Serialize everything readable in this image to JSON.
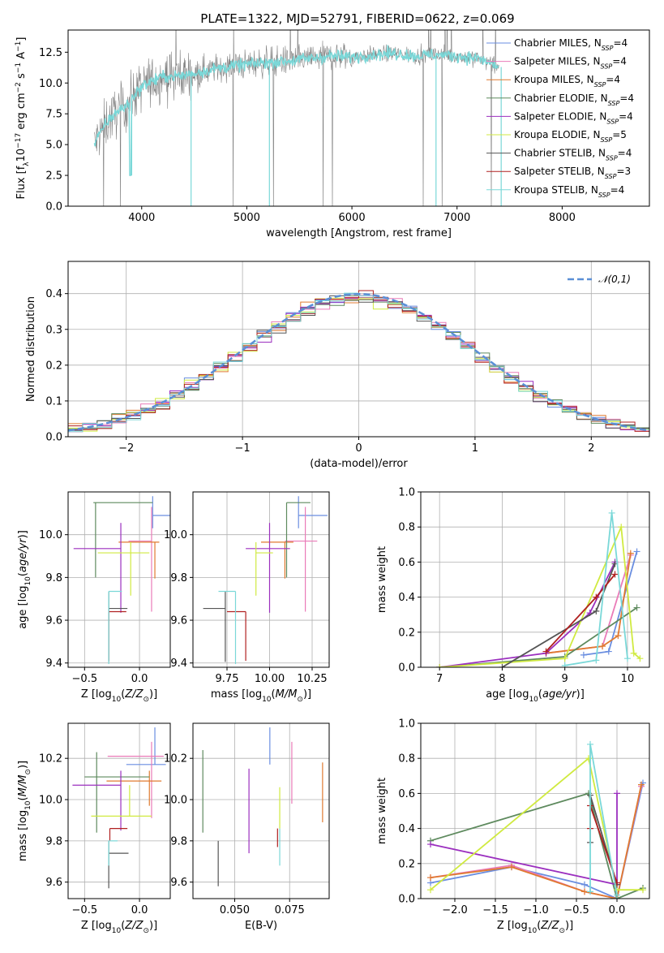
{
  "figure_title": "PLATE=1322, MJD=52791, FIBERID=0622, z=0.069",
  "colors": {
    "Chabrier MILES": "#6a8ee0",
    "Salpeter MILES": "#ea7bb8",
    "Kroupa MILES": "#e07a30",
    "Chabrier ELODIE": "#5e8a5e",
    "Salpeter ELODIE": "#9b2fbf",
    "Kroupa ELODIE": "#d0ea40",
    "Chabrier STELIB": "#555555",
    "Salpeter STELIB": "#b02020",
    "Kroupa STELIB": "#7ad8d8",
    "data": "#808080",
    "normal": "#5b8fd6"
  },
  "chart_data": [
    {
      "id": "spectrum",
      "type": "line",
      "title": "PLATE=1322, MJD=52791, FIBERID=0622, z=0.069",
      "xlabel": "wavelength [Angstrom, rest frame]",
      "ylabel": "Flux [f_λ 10^-17 erg cm^-2 s^-1 A^-1]",
      "xlim": [
        3300,
        8830
      ],
      "ylim": [
        0,
        14.3
      ],
      "xticks": [
        4000,
        5000,
        6000,
        7000,
        8000
      ],
      "yticks": [
        0.0,
        2.5,
        5.0,
        7.5,
        10.0,
        12.5
      ],
      "continuum_x": [
        3550,
        3650,
        3750,
        3850,
        3950,
        4050,
        4200,
        4400,
        4600,
        4800,
        5000,
        5200,
        5400,
        5600,
        5800,
        6000,
        6200,
        6400,
        6600,
        6800,
        7000,
        7200,
        7400
      ],
      "continuum_y": [
        5.0,
        6.6,
        7.6,
        8.1,
        9.3,
        10.0,
        10.5,
        10.6,
        11.0,
        11.3,
        11.5,
        11.7,
        11.8,
        12.0,
        12.2,
        12.1,
        12.3,
        12.4,
        12.2,
        12.3,
        12.2,
        12.0,
        11.3
      ],
      "legend": [
        {
          "label": "Chabrier MILES, N_SSP=4"
        },
        {
          "label": "Salpeter MILES, N_SSP=4"
        },
        {
          "label": "Kroupa MILES, N_SSP=4"
        },
        {
          "label": "Chabrier ELODIE, N_SSP=4"
        },
        {
          "label": "Salpeter ELODIE, N_SSP=4"
        },
        {
          "label": "Kroupa ELODIE, N_SSP=5"
        },
        {
          "label": "Chabrier STELIB, N_SSP=4"
        },
        {
          "label": "Salpeter STELIB, N_SSP=3"
        },
        {
          "label": "Kroupa STELIB, N_SSP=4"
        }
      ]
    },
    {
      "id": "residual_hist",
      "type": "bar",
      "xlabel": "(data-model)/error",
      "ylabel": "Normed distribution",
      "xlim": [
        -2.5,
        2.5
      ],
      "ylim": [
        0,
        0.49
      ],
      "xticks": [
        -2,
        -1,
        0,
        1,
        2
      ],
      "yticks": [
        0.0,
        0.1,
        0.2,
        0.3,
        0.4
      ],
      "normal_label": "𝒩(0,1)"
    },
    {
      "id": "age_vs_Z",
      "type": "scatter",
      "xlabel": "Z [log10(Z/Z⊙)]",
      "ylabel": "age [log10(age/yr)]",
      "xlim": [
        -0.65,
        0.28
      ],
      "ylim": [
        9.38,
        10.2
      ],
      "xticks": [
        -0.5,
        0.0
      ],
      "yticks": [
        9.4,
        9.6,
        9.8,
        10.0
      ],
      "points": [
        {
          "model": "Chabrier MILES",
          "x": 0.12,
          "xerr": [
            0.0,
            0.22
          ],
          "y": 10.09,
          "yerr": [
            0.06,
            0.09
          ]
        },
        {
          "model": "Salpeter MILES",
          "x": 0.11,
          "xerr": [
            0.21,
            0.0
          ],
          "y": 9.97,
          "yerr": [
            0.33,
            0.16
          ]
        },
        {
          "model": "Kroupa MILES",
          "x": 0.14,
          "xerr": [
            0.33,
            0.04
          ],
          "y": 9.965,
          "yerr": [
            0.17,
            0.0
          ]
        },
        {
          "model": "Chabrier ELODIE",
          "x": -0.4,
          "xerr": [
            0.02,
            0.52
          ],
          "y": 10.15,
          "yerr": [
            0.35,
            0.0
          ]
        },
        {
          "model": "Salpeter ELODIE",
          "x": -0.17,
          "xerr": [
            0.43,
            0.0
          ],
          "y": 9.935,
          "yerr": [
            0.3,
            0.12
          ]
        },
        {
          "model": "Kroupa ELODIE",
          "x": -0.08,
          "xerr": [
            0.3,
            0.17
          ],
          "y": 9.915,
          "yerr": [
            0.2,
            0.05
          ]
        },
        {
          "model": "Chabrier STELIB",
          "x": -0.28,
          "xerr": [
            0.0,
            0.17
          ],
          "y": 9.655,
          "yerr": [
            0.25,
            0.08
          ]
        },
        {
          "model": "Salpeter STELIB",
          "x": -0.28,
          "xerr": [
            0.0,
            0.16
          ],
          "y": 9.64,
          "yerr": [
            0.23,
            0.0
          ]
        },
        {
          "model": "Kroupa STELIB",
          "x": -0.28,
          "xerr": [
            0.0,
            0.12
          ],
          "y": 9.735,
          "yerr": [
            0.34,
            0.0
          ]
        }
      ]
    },
    {
      "id": "age_vs_mass",
      "type": "scatter",
      "xlabel": "mass [log10(M/M⊙)]",
      "ylabel": "",
      "xlim": [
        9.55,
        10.35
      ],
      "ylim": [
        9.38,
        10.2
      ],
      "xticks": [
        9.75,
        10.0,
        10.25
      ],
      "xtick_labels": [
        "9.75",
        "10.00",
        "10.25"
      ],
      "yticks": [
        9.4,
        9.6,
        9.8,
        10.0
      ],
      "points": [
        {
          "model": "Chabrier MILES",
          "x": 10.17,
          "xerr": [
            0.0,
            0.17
          ],
          "y": 10.09,
          "yerr": [
            0.06,
            0.09
          ]
        },
        {
          "model": "Salpeter MILES",
          "x": 10.21,
          "xerr": [
            0.12,
            0.07
          ],
          "y": 9.97,
          "yerr": [
            0.33,
            0.16
          ]
        },
        {
          "model": "Kroupa MILES",
          "x": 10.09,
          "xerr": [
            0.14,
            0.05
          ],
          "y": 9.965,
          "yerr": [
            0.17,
            0.0
          ]
        },
        {
          "model": "Chabrier ELODIE",
          "x": 10.1,
          "xerr": [
            0.0,
            0.14
          ],
          "y": 10.15,
          "yerr": [
            0.35,
            0.0
          ]
        },
        {
          "model": "Salpeter ELODIE",
          "x": 10.0,
          "xerr": [
            0.14,
            0.12
          ],
          "y": 9.935,
          "yerr": [
            0.3,
            0.12
          ]
        },
        {
          "model": "Kroupa ELODIE",
          "x": 9.92,
          "xerr": [
            0.0,
            0.1
          ],
          "y": 9.915,
          "yerr": [
            0.2,
            0.05
          ]
        },
        {
          "model": "Chabrier STELIB",
          "x": 9.74,
          "xerr": [
            0.13,
            0.0
          ],
          "y": 9.655,
          "yerr": [
            0.25,
            0.08
          ]
        },
        {
          "model": "Salpeter STELIB",
          "x": 9.86,
          "xerr": [
            0.11,
            0.0
          ],
          "y": 9.64,
          "yerr": [
            0.23,
            0.0
          ]
        },
        {
          "model": "Kroupa STELIB",
          "x": 9.8,
          "xerr": [
            0.1,
            0.0
          ],
          "y": 9.735,
          "yerr": [
            0.34,
            0.0
          ]
        }
      ]
    },
    {
      "id": "weight_vs_age",
      "type": "line",
      "xlabel": "age [log10(age/yr)]",
      "ylabel": "mass weight",
      "xlim": [
        6.7,
        10.35
      ],
      "ylim": [
        0,
        1.0
      ],
      "xticks": [
        7,
        8,
        9,
        10
      ],
      "yticks": [
        0.0,
        0.2,
        0.4,
        0.6,
        0.8,
        1.0
      ],
      "series": [
        {
          "model": "Chabrier MILES",
          "x": [
            9.3,
            9.7,
            10.15
          ],
          "y": [
            0.07,
            0.09,
            0.66
          ]
        },
        {
          "model": "Salpeter MILES",
          "x": [
            8.7,
            9.6,
            10.05
          ],
          "y": [
            0.08,
            0.12,
            0.64
          ]
        },
        {
          "model": "Kroupa MILES",
          "x": [
            8.7,
            9.6,
            9.85,
            10.05
          ],
          "y": [
            0.08,
            0.12,
            0.18,
            0.65
          ]
        },
        {
          "model": "Chabrier ELODIE",
          "x": [
            7.0,
            9.0,
            10.15
          ],
          "y": [
            0.0,
            0.06,
            0.34
          ]
        },
        {
          "model": "Salpeter ELODIE",
          "x": [
            7.0,
            8.7,
            9.4,
            9.8
          ],
          "y": [
            0.0,
            0.08,
            0.31,
            0.6
          ]
        },
        {
          "model": "Kroupa ELODIE",
          "x": [
            7.0,
            9.0,
            9.9,
            10.1,
            10.2
          ],
          "y": [
            0.0,
            0.05,
            0.8,
            0.08,
            0.05
          ]
        },
        {
          "model": "Chabrier STELIB",
          "x": [
            8.0,
            9.5,
            9.8
          ],
          "y": [
            0.0,
            0.32,
            0.59
          ]
        },
        {
          "model": "Salpeter STELIB",
          "x": [
            8.7,
            9.5,
            9.8
          ],
          "y": [
            0.09,
            0.4,
            0.53
          ]
        },
        {
          "model": "Kroupa STELIB",
          "x": [
            9.0,
            9.5,
            9.75,
            10.0
          ],
          "y": [
            0.01,
            0.04,
            0.88,
            0.05
          ]
        }
      ]
    },
    {
      "id": "mass_vs_Z",
      "type": "scatter",
      "xlabel": "Z [log10(Z/Z⊙)]",
      "ylabel": "mass [log10(M/M⊙)]",
      "xlim": [
        -0.65,
        0.28
      ],
      "ylim": [
        9.52,
        10.37
      ],
      "xticks": [
        -0.5,
        0.0
      ],
      "yticks": [
        9.6,
        9.8,
        10.0,
        10.2
      ],
      "points": [
        {
          "model": "Chabrier MILES",
          "x": 0.14,
          "xerr": [
            0.26,
            0.1
          ],
          "y": 10.17,
          "yerr": [
            0.0,
            0.18
          ]
        },
        {
          "model": "Salpeter MILES",
          "x": 0.11,
          "xerr": [
            0.4,
            0.11
          ],
          "y": 10.21,
          "yerr": [
            0.3,
            0.07
          ]
        },
        {
          "model": "Kroupa MILES",
          "x": 0.09,
          "xerr": [
            0.39,
            0.11
          ],
          "y": 10.09,
          "yerr": [
            0.12,
            0.05
          ]
        },
        {
          "model": "Chabrier ELODIE",
          "x": -0.39,
          "xerr": [
            0.11,
            0.48
          ],
          "y": 10.11,
          "yerr": [
            0.27,
            0.12
          ]
        },
        {
          "model": "Salpeter ELODIE",
          "x": -0.17,
          "xerr": [
            0.44,
            0.0
          ],
          "y": 10.07,
          "yerr": [
            0.22,
            0.07
          ]
        },
        {
          "model": "Kroupa ELODIE",
          "x": -0.09,
          "xerr": [
            0.35,
            0.2
          ],
          "y": 9.92,
          "yerr": [
            0.0,
            0.15
          ]
        },
        {
          "model": "Chabrier STELIB",
          "x": -0.28,
          "xerr": [
            0.0,
            0.18
          ],
          "y": 9.74,
          "yerr": [
            0.17,
            0.06
          ]
        },
        {
          "model": "Salpeter STELIB",
          "x": -0.27,
          "xerr": [
            0.0,
            0.16
          ],
          "y": 9.86,
          "yerr": [
            0.06,
            0.0
          ]
        },
        {
          "model": "Kroupa STELIB",
          "x": -0.28,
          "xerr": [
            0.0,
            0.08
          ],
          "y": 9.8,
          "yerr": [
            0.12,
            0.0
          ]
        }
      ]
    },
    {
      "id": "mass_vs_ebv",
      "type": "scatter",
      "xlabel": "E(B-V)",
      "ylabel": "",
      "xlim": [
        0.031,
        0.093
      ],
      "ylim": [
        9.52,
        10.37
      ],
      "xticks": [
        0.05,
        0.075
      ],
      "xtick_labels": [
        "0.050",
        "0.075"
      ],
      "yticks": [
        9.6,
        9.8,
        10.0,
        10.2
      ],
      "points": [
        {
          "model": "Chabrier MILES",
          "x": 0.066,
          "y": 10.17,
          "yerr": [
            0.0,
            0.18
          ]
        },
        {
          "model": "Salpeter MILES",
          "x": 0.076,
          "y": 10.16,
          "yerr": [
            0.18,
            0.12
          ]
        },
        {
          "model": "Kroupa MILES",
          "x": 0.09,
          "y": 10.03,
          "yerr": [
            0.14,
            0.15
          ]
        },
        {
          "model": "Chabrier ELODIE",
          "x": 0.0355,
          "y": 10.04,
          "yerr": [
            0.2,
            0.2
          ]
        },
        {
          "model": "Salpeter ELODIE",
          "x": 0.0565,
          "y": 9.94,
          "yerr": [
            0.2,
            0.21
          ]
        },
        {
          "model": "Kroupa ELODIE",
          "x": 0.0705,
          "y": 9.98,
          "yerr": [
            0.12,
            0.08
          ]
        },
        {
          "model": "Chabrier STELIB",
          "x": 0.0425,
          "y": 9.69,
          "yerr": [
            0.11,
            0.11
          ]
        },
        {
          "model": "Salpeter STELIB",
          "x": 0.0695,
          "y": 9.83,
          "yerr": [
            0.06,
            0.03
          ]
        },
        {
          "model": "Kroupa STELIB",
          "x": 0.0705,
          "y": 9.8,
          "yerr": [
            0.12,
            0.06
          ]
        }
      ]
    },
    {
      "id": "weight_vs_Z",
      "type": "line",
      "xlabel": "Z [log10(Z/Z⊙)]",
      "ylabel": "mass weight",
      "xlim": [
        -2.42,
        0.4
      ],
      "ylim": [
        0,
        1.0
      ],
      "xticks": [
        -2.0,
        -1.5,
        -1.0,
        -0.5,
        0.0
      ],
      "xtick_labels": [
        "−2.0",
        "−1.5",
        "−1.0",
        "−0.5",
        "0.0"
      ],
      "yticks": [
        0.0,
        0.2,
        0.4,
        0.6,
        0.8,
        1.0
      ],
      "series": [
        {
          "model": "Chabrier MILES",
          "x": [
            -2.3,
            -1.3,
            -0.4,
            0.0,
            0.32
          ],
          "y": [
            0.09,
            0.18,
            0.08,
            0.0,
            0.66
          ]
        },
        {
          "model": "Salpeter MILES",
          "x": [
            -2.3,
            -1.3,
            -0.4,
            0.0,
            0.3
          ],
          "y": [
            0.12,
            0.19,
            0.04,
            0.0,
            0.64
          ]
        },
        {
          "model": "Kroupa MILES",
          "x": [
            -2.3,
            -1.3,
            -0.4,
            0.0,
            0.3
          ],
          "y": [
            0.12,
            0.18,
            0.04,
            0.0,
            0.65
          ]
        },
        {
          "model": "Chabrier ELODIE",
          "x": [
            -2.3,
            -0.35,
            0.0,
            0.32
          ],
          "y": [
            0.33,
            0.6,
            0.0,
            0.06
          ]
        },
        {
          "model": "Salpeter ELODIE",
          "x": [
            -2.3,
            0.0,
            0.0
          ],
          "y": [
            0.31,
            0.08,
            0.6
          ]
        },
        {
          "model": "Kroupa ELODIE",
          "x": [
            -2.3,
            -0.35,
            0.0,
            0.32
          ],
          "y": [
            0.05,
            0.8,
            0.05,
            0.05
          ]
        },
        {
          "model": "Chabrier STELIB",
          "x": [
            -0.33,
            -0.33,
            0.0
          ],
          "y": [
            0.32,
            0.59,
            0.08
          ]
        },
        {
          "model": "Salpeter STELIB",
          "x": [
            -0.33,
            -0.33,
            0.0
          ],
          "y": [
            0.4,
            0.53,
            0.09
          ]
        },
        {
          "model": "Kroupa STELIB",
          "x": [
            -0.33,
            -0.33,
            0.0
          ],
          "y": [
            0.04,
            0.88,
            0.02
          ]
        }
      ]
    }
  ]
}
